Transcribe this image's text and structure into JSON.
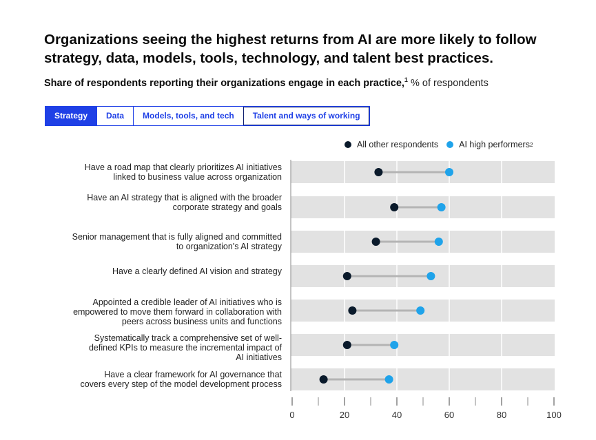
{
  "title": "Organizations seeing the highest returns from AI are more likely to follow strategy, data, models, tools, technology, and talent best practices.",
  "subtitle": {
    "main": "Share of respondents reporting their organizations engage in each practice,",
    "footnote_marker": "1",
    "unit": " % of respondents"
  },
  "tabs": [
    {
      "label": "Strategy",
      "active": true
    },
    {
      "label": "Data",
      "active": false
    },
    {
      "label": "Models, tools, and tech",
      "active": false
    },
    {
      "label": "Talent and ways of working",
      "active": false
    }
  ],
  "legend": {
    "other": "All other respondents",
    "high": "AI high performers",
    "high_footnote": "2"
  },
  "colors": {
    "other": "#0a1a2b",
    "high": "#1fa3ea",
    "band": "#e2e2e2",
    "connector": "#b4b4b4",
    "accent": "#1f40e6"
  },
  "chart_data": {
    "type": "scatter",
    "subtype": "dumbbell",
    "title": "Share of respondents reporting their organizations engage in each practice, % of respondents",
    "xlim": [
      0,
      100
    ],
    "xticks": [
      "0",
      "20",
      "40",
      "60",
      "80",
      "100"
    ],
    "categories": [
      [
        "Have a road map that clearly prioritizes AI initiatives",
        "linked to business value across organization"
      ],
      [
        "Have an AI strategy that is aligned with the broader",
        "corporate strategy and goals"
      ],
      [
        "Senior management that is fully aligned and committed",
        "to organization's AI strategy"
      ],
      [
        "Have a clearly defined AI vision and strategy"
      ],
      [
        "Appointed a credible leader of AI initiatives who is",
        "empowered to move them forward in collaboration with",
        "peers across business units and functions"
      ],
      [
        "Systematically track a comprehensive set of well-",
        "defined KPIs to measure the incremental impact of",
        "AI initiatives"
      ],
      [
        "Have a clear framework for AI governance that",
        "covers every step of the model development process"
      ]
    ],
    "series": [
      {
        "name": "All other respondents",
        "values": [
          33,
          39,
          32,
          21,
          23,
          21,
          12
        ]
      },
      {
        "name": "AI high performers",
        "values": [
          60,
          57,
          56,
          53,
          49,
          39,
          37
        ]
      }
    ]
  }
}
